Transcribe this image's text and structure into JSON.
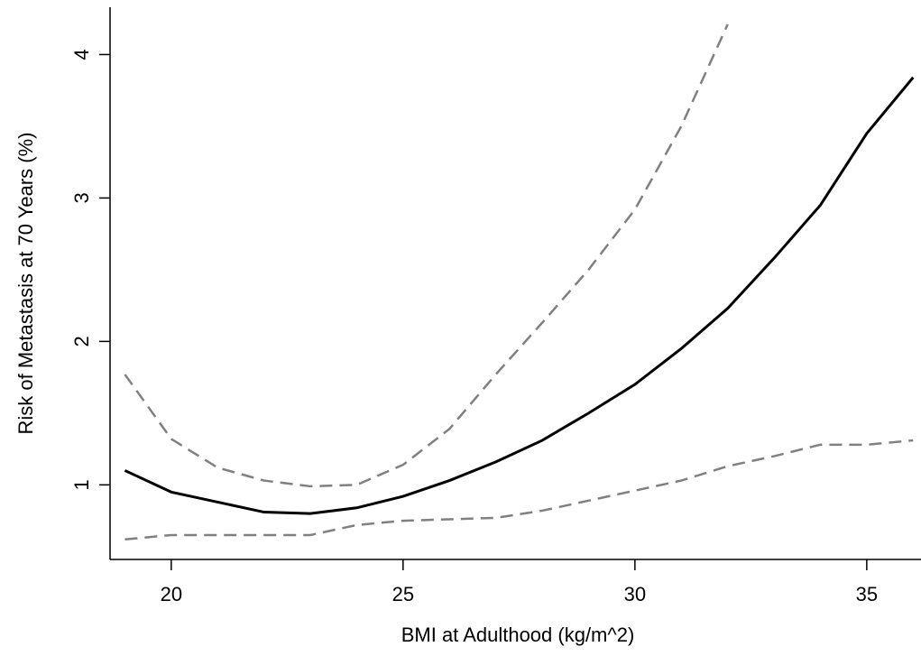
{
  "chart_data": {
    "type": "line",
    "x_label": "BMI at Adulthood (kg/m^2)",
    "y_label": "Risk of Metastasis at 70 Years (%)",
    "x": [
      19,
      20,
      21,
      22,
      23,
      24,
      25,
      26,
      27,
      28,
      29,
      30,
      31,
      32,
      33,
      34,
      35,
      36
    ],
    "series": [
      {
        "color": "#000000",
        "dash": false,
        "values": [
          1.1,
          0.95,
          0.88,
          0.81,
          0.8,
          0.84,
          0.92,
          1.03,
          1.16,
          1.31,
          1.5,
          1.7,
          1.95,
          2.23,
          2.58,
          2.95,
          3.45,
          3.84
        ]
      },
      {
        "color": "#808080",
        "dash": true,
        "values": [
          1.77,
          1.32,
          1.12,
          1.03,
          0.99,
          1.0,
          1.14,
          1.39,
          1.77,
          2.13,
          2.5,
          2.92,
          3.5,
          4.21,
          null,
          null,
          null,
          null
        ]
      },
      {
        "color": "#808080",
        "dash": true,
        "values": [
          0.62,
          0.65,
          0.65,
          0.65,
          0.65,
          0.72,
          0.75,
          0.76,
          0.77,
          0.82,
          0.89,
          0.96,
          1.03,
          1.13,
          1.2,
          1.28,
          1.28,
          1.31
        ]
      }
    ],
    "xlim": [
      18.68,
      36.17
    ],
    "xticks": [
      20,
      25,
      30,
      35
    ],
    "ylim": [
      0.48,
      4.33
    ],
    "yticks": [
      1,
      2,
      3,
      4
    ]
  }
}
